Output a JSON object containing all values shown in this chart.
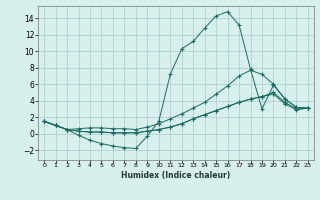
{
  "xlabel": "Humidex (Indice chaleur)",
  "ylabel": "",
  "bg_color": "#d8f0ec",
  "grid_color": "#aacccc",
  "line_color": "#1a6b60",
  "xlim": [
    -0.5,
    23.5
  ],
  "ylim": [
    -3.2,
    15.5
  ],
  "xticks": [
    0,
    1,
    2,
    3,
    4,
    5,
    6,
    7,
    8,
    9,
    10,
    11,
    12,
    13,
    14,
    15,
    16,
    17,
    18,
    19,
    20,
    21,
    22,
    23
  ],
  "yticks": [
    -2,
    0,
    2,
    4,
    6,
    8,
    10,
    12,
    14
  ],
  "line1_x": [
    0,
    1,
    2,
    3,
    4,
    5,
    6,
    7,
    8,
    9,
    10,
    11,
    12,
    13,
    14,
    15,
    16,
    17,
    18,
    19,
    20,
    21,
    22,
    23
  ],
  "line1_y": [
    1.5,
    1.0,
    0.5,
    -0.2,
    -0.8,
    -1.2,
    -1.5,
    -1.7,
    -1.8,
    -0.3,
    1.5,
    7.2,
    10.3,
    11.2,
    12.8,
    14.3,
    14.8,
    13.2,
    7.8,
    3.0,
    5.9,
    4.2,
    3.2,
    3.1
  ],
  "line2_x": [
    0,
    1,
    2,
    3,
    4,
    5,
    6,
    7,
    8,
    9,
    10,
    11,
    12,
    13,
    14,
    15,
    16,
    17,
    18,
    19,
    20,
    21,
    22,
    23
  ],
  "line2_y": [
    1.5,
    1.0,
    0.5,
    0.6,
    0.7,
    0.7,
    0.6,
    0.6,
    0.5,
    0.8,
    1.2,
    1.8,
    2.4,
    3.1,
    3.8,
    4.8,
    5.8,
    7.0,
    7.7,
    7.2,
    6.0,
    4.2,
    3.2,
    3.1
  ],
  "line3_x": [
    0,
    1,
    2,
    3,
    4,
    5,
    6,
    7,
    8,
    9,
    10,
    11,
    12,
    13,
    14,
    15,
    16,
    17,
    18,
    19,
    20,
    21,
    22,
    23
  ],
  "line3_y": [
    1.5,
    1.0,
    0.5,
    0.3,
    0.2,
    0.2,
    0.1,
    0.1,
    0.1,
    0.3,
    0.5,
    0.8,
    1.2,
    1.8,
    2.3,
    2.8,
    3.3,
    3.8,
    4.2,
    4.5,
    5.0,
    3.8,
    3.0,
    3.1
  ],
  "line4_x": [
    0,
    1,
    2,
    3,
    4,
    5,
    6,
    7,
    8,
    9,
    10,
    11,
    12,
    13,
    14,
    15,
    16,
    17,
    18,
    19,
    20,
    21,
    22,
    23
  ],
  "line4_y": [
    1.5,
    1.0,
    0.5,
    0.3,
    0.2,
    0.2,
    0.1,
    0.1,
    0.1,
    0.3,
    0.5,
    0.8,
    1.2,
    1.8,
    2.3,
    2.8,
    3.3,
    3.8,
    4.2,
    4.5,
    4.8,
    3.6,
    2.9,
    3.1
  ]
}
